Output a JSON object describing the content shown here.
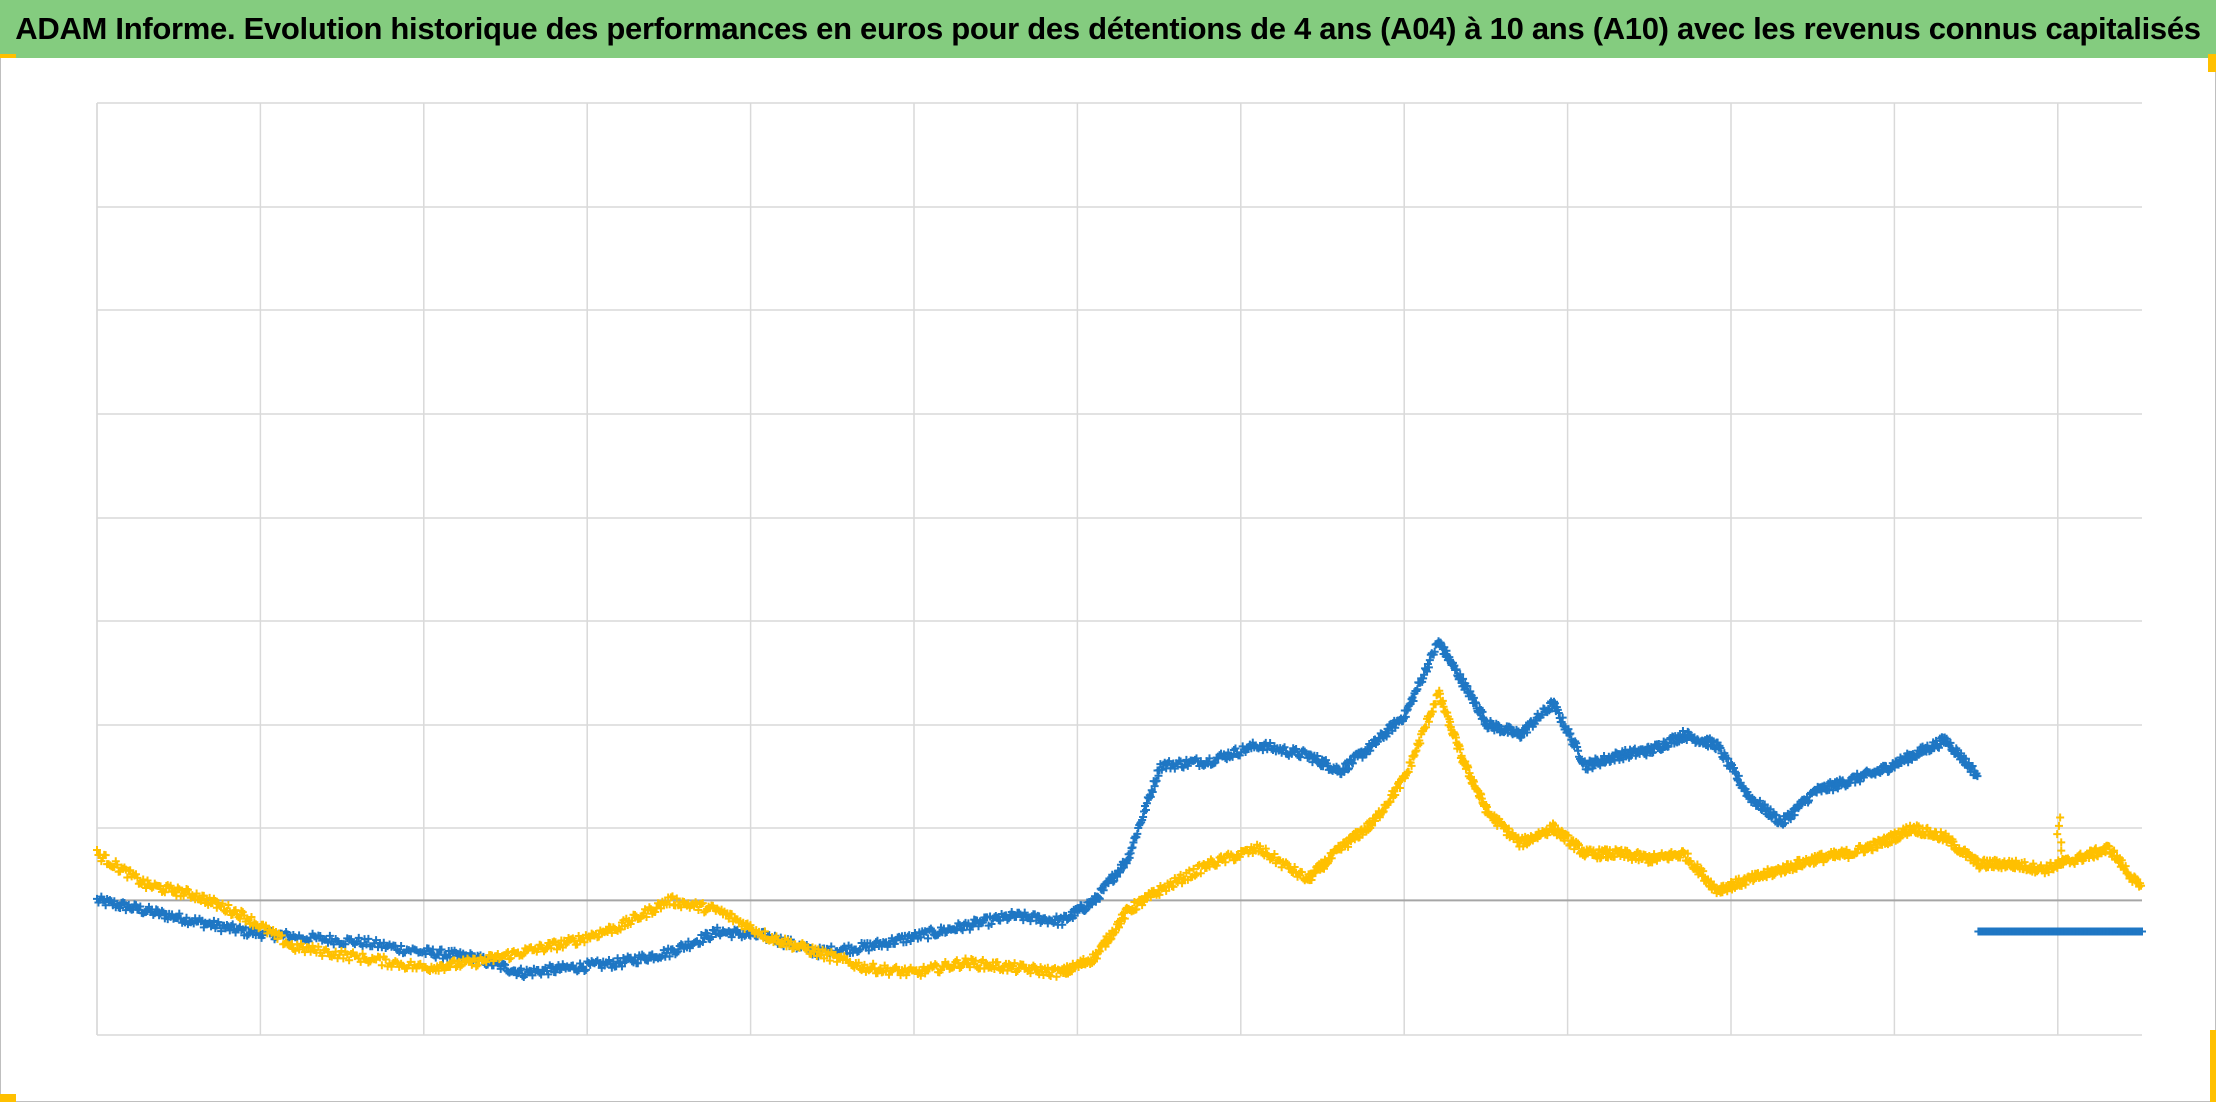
{
  "title": "ADAM Informe. Evolution historique des performances en euros pour des détentions de 4 ans (A04) à 10 ans (A10) avec les revenus connus capitalisés",
  "colors": {
    "title_bg": "#84cc7f",
    "series_A04": "#1f77c4",
    "series_A10": "#ffc000",
    "grid": "#d9d9d9",
    "baseline": "#a6a6a6",
    "handle": "#ffc000"
  },
  "chart_data": {
    "type": "scatter",
    "marker": "plus",
    "title": "ADAM Informe. Evolution historique des performances en euros pour des détentions de 4 ans (A04) à 10 ans (A10) avec les revenus connus capitalisés",
    "xlabel": "",
    "ylabel": "",
    "tick_labels_visible": false,
    "legend": "none",
    "grid": true,
    "x_gridlines": 13,
    "y_gridlines": 9,
    "xlim": [
      0,
      12.5
    ],
    "ylim": [
      -1.3,
      7.7
    ],
    "series": [
      {
        "color": "#1f77c4",
        "points": [
          [
            0.0,
            0.0
          ],
          [
            0.3,
            -0.1
          ],
          [
            0.6,
            -0.2
          ],
          [
            0.9,
            -0.3
          ],
          [
            1.2,
            -0.35
          ],
          [
            1.6,
            -0.4
          ],
          [
            2.0,
            -0.5
          ],
          [
            2.3,
            -0.55
          ],
          [
            2.6,
            -0.7
          ],
          [
            2.9,
            -0.65
          ],
          [
            3.2,
            -0.6
          ],
          [
            3.5,
            -0.5
          ],
          [
            3.8,
            -0.3
          ],
          [
            4.1,
            -0.35
          ],
          [
            4.4,
            -0.5
          ],
          [
            4.7,
            -0.45
          ],
          [
            5.0,
            -0.35
          ],
          [
            5.3,
            -0.25
          ],
          [
            5.6,
            -0.15
          ],
          [
            5.9,
            -0.2
          ],
          [
            6.1,
            0.0
          ],
          [
            6.3,
            0.4
          ],
          [
            6.5,
            1.3
          ],
          [
            6.8,
            1.35
          ],
          [
            7.1,
            1.5
          ],
          [
            7.4,
            1.4
          ],
          [
            7.6,
            1.25
          ],
          [
            7.8,
            1.5
          ],
          [
            8.0,
            1.8
          ],
          [
            8.2,
            2.5
          ],
          [
            8.35,
            2.1
          ],
          [
            8.5,
            1.7
          ],
          [
            8.7,
            1.6
          ],
          [
            8.9,
            1.9
          ],
          [
            9.1,
            1.3
          ],
          [
            9.3,
            1.4
          ],
          [
            9.5,
            1.45
          ],
          [
            9.7,
            1.6
          ],
          [
            9.9,
            1.5
          ],
          [
            10.1,
            1.0
          ],
          [
            10.3,
            0.75
          ],
          [
            10.5,
            1.05
          ],
          [
            10.7,
            1.15
          ],
          [
            10.9,
            1.25
          ],
          [
            11.1,
            1.4
          ],
          [
            11.3,
            1.55
          ],
          [
            11.5,
            1.2
          ]
        ],
        "flat_segment": {
          "x_start": 11.5,
          "x_end": 12.5,
          "y": -0.3
        }
      },
      {
        "color": "#ffc000",
        "points": [
          [
            0.0,
            0.45
          ],
          [
            0.3,
            0.15
          ],
          [
            0.6,
            0.05
          ],
          [
            0.9,
            -0.15
          ],
          [
            1.2,
            -0.45
          ],
          [
            1.6,
            -0.55
          ],
          [
            2.0,
            -0.65
          ],
          [
            2.3,
            -0.6
          ],
          [
            2.6,
            -0.5
          ],
          [
            2.9,
            -0.4
          ],
          [
            3.2,
            -0.25
          ],
          [
            3.5,
            0.0
          ],
          [
            3.8,
            -0.1
          ],
          [
            4.1,
            -0.35
          ],
          [
            4.4,
            -0.5
          ],
          [
            4.7,
            -0.65
          ],
          [
            5.0,
            -0.7
          ],
          [
            5.3,
            -0.6
          ],
          [
            5.6,
            -0.65
          ],
          [
            5.9,
            -0.7
          ],
          [
            6.1,
            -0.55
          ],
          [
            6.3,
            -0.1
          ],
          [
            6.5,
            0.1
          ],
          [
            6.8,
            0.35
          ],
          [
            7.1,
            0.5
          ],
          [
            7.4,
            0.2
          ],
          [
            7.6,
            0.5
          ],
          [
            7.8,
            0.75
          ],
          [
            8.0,
            1.2
          ],
          [
            8.2,
            2.0
          ],
          [
            8.35,
            1.35
          ],
          [
            8.5,
            0.85
          ],
          [
            8.7,
            0.55
          ],
          [
            8.9,
            0.7
          ],
          [
            9.1,
            0.45
          ],
          [
            9.3,
            0.45
          ],
          [
            9.5,
            0.4
          ],
          [
            9.7,
            0.45
          ],
          [
            9.9,
            0.1
          ],
          [
            10.1,
            0.2
          ],
          [
            10.3,
            0.3
          ],
          [
            10.5,
            0.4
          ],
          [
            10.7,
            0.45
          ],
          [
            10.9,
            0.55
          ],
          [
            11.1,
            0.7
          ],
          [
            11.3,
            0.6
          ],
          [
            11.5,
            0.35
          ],
          [
            11.7,
            0.35
          ],
          [
            11.9,
            0.3
          ],
          [
            12.1,
            0.4
          ],
          [
            12.3,
            0.5
          ],
          [
            12.5,
            0.1
          ]
        ],
        "spikes": [
          [
            12.0,
            0.8
          ]
        ]
      }
    ]
  }
}
